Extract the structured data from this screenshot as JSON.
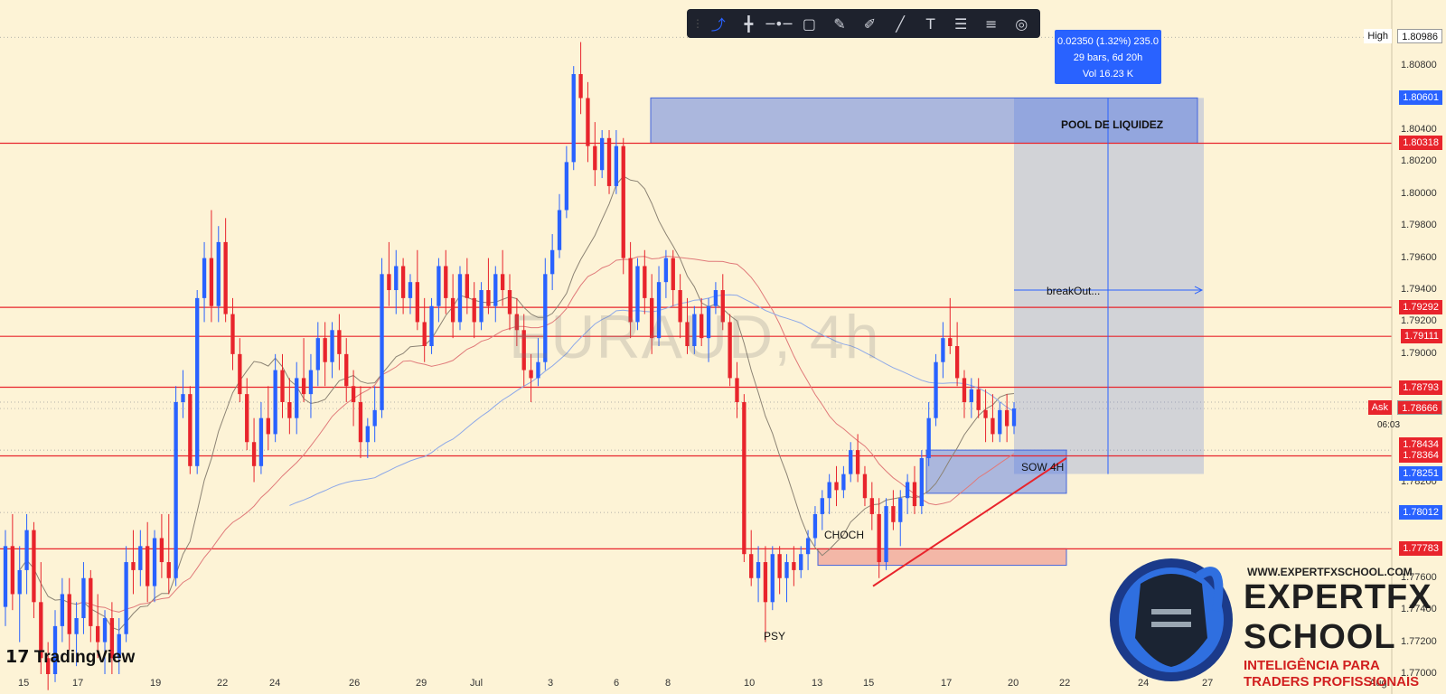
{
  "toolbar": {
    "icons": [
      "cursor-icon",
      "crosshair-icon",
      "horizontal-line-icon",
      "rectangle-icon",
      "brush-icon",
      "magic-icon",
      "trendline-icon",
      "text-icon",
      "fib-icon",
      "levels-icon",
      "settings-icon"
    ],
    "glyphs": [
      "⤴",
      "╋",
      "─•─",
      "▢",
      "✎",
      "✐",
      "╱",
      "T",
      "☰",
      "≡",
      "◎"
    ]
  },
  "measure": {
    "line1": "0.02350 (1.32%) 235.0",
    "line2": "29 bars, 6d 20h",
    "line3": "Vol 16.23 K"
  },
  "watermark": "EURAUD, 4h",
  "tv_logo": "TradingView",
  "brand": {
    "url": "WWW.EXPERTFXSCHOOL.COM",
    "name1": "EXPERTFX",
    "name2": "SCHOOL",
    "tagline1": "INTELIGÊNCIA PARA",
    "tagline2": "TRADERS PROFISSIONAIS"
  },
  "annotations": {
    "pool": "POOL DE LIQUIDEZ",
    "breakout": "breakOut...",
    "sow": "SOW 4H",
    "choch": "CHOCH",
    "psy": "PSY"
  },
  "price_labels": [
    {
      "text": "High",
      "value": "1.80986",
      "bg": "#ffffff",
      "fg": "#111111",
      "tag": true
    },
    {
      "text": "",
      "value": "1.80601",
      "bg": "#2962ff",
      "fg": "#ffffff"
    },
    {
      "text": "",
      "value": "1.80318",
      "bg": "#e8242c",
      "fg": "#ffffff"
    },
    {
      "text": "",
      "value": "1.79292",
      "bg": "#e8242c",
      "fg": "#ffffff"
    },
    {
      "text": "",
      "value": "1.79111",
      "bg": "#e8242c",
      "fg": "#ffffff"
    },
    {
      "text": "",
      "value": "1.78793",
      "bg": "#e8242c",
      "fg": "#ffffff"
    },
    {
      "text": "Ask",
      "value": "1.78666",
      "bg": "#e8242c",
      "fg": "#ffffff",
      "tag": true
    },
    {
      "text": "",
      "value": "1.78434",
      "bg": "#e8242c",
      "fg": "#ffffff"
    },
    {
      "text": "",
      "value": "1.78364",
      "bg": "#e8242c",
      "fg": "#ffffff"
    },
    {
      "text": "",
      "value": "1.78251",
      "bg": "#2962ff",
      "fg": "#ffffff"
    },
    {
      "text": "",
      "value": "1.78012",
      "bg": "#2962ff",
      "fg": "#ffffff"
    },
    {
      "text": "",
      "value": "1.77783",
      "bg": "#e8242c",
      "fg": "#ffffff"
    }
  ],
  "timer": "06:03",
  "chart_data": {
    "type": "candlestick",
    "symbol": "EURAUD",
    "timeframe": "4h",
    "ylim": [
      1.77,
      1.811
    ],
    "y_ticks": [
      1.808,
      1.804,
      1.802,
      1.8,
      1.798,
      1.796,
      1.794,
      1.792,
      1.79,
      1.782,
      1.776,
      1.774,
      1.772,
      1.77
    ],
    "y_tick_labels": [
      "1.80800",
      "1.80400",
      "1.80200",
      "1.80000",
      "1.79800",
      "1.79600",
      "1.79400",
      "1.79200",
      "1.79000",
      "1.78200",
      "1.77600",
      "1.77400",
      "1.77200",
      "1.77000"
    ],
    "x_tick_labels": [
      "15",
      "17",
      "19",
      "22",
      "24",
      "26",
      "29",
      "Jul",
      "3",
      "6",
      "8",
      "10",
      "13",
      "15",
      "17",
      "20",
      "22",
      "24",
      "27",
      "Aug"
    ],
    "horizontal_levels": [
      1.80318,
      1.79292,
      1.79111,
      1.78793,
      1.78364,
      1.77783
    ],
    "zones": {
      "pool_de_liquidez": [
        1.80318,
        1.80601
      ],
      "projection": [
        1.78251,
        1.80601
      ],
      "sow_4h": [
        1.7813,
        1.784
      ],
      "choch": [
        1.7768,
        1.77783
      ]
    },
    "measure": {
      "change": 0.0235,
      "percent": 1.32,
      "pips": 235.0,
      "bars": 29,
      "duration": "6d 20h",
      "volume": "16.23 K"
    },
    "candles": [
      [
        1.7742,
        1.779,
        1.773,
        1.778
      ],
      [
        1.778,
        1.78,
        1.774,
        1.775
      ],
      [
        1.775,
        1.778,
        1.772,
        1.7765
      ],
      [
        1.7765,
        1.78,
        1.775,
        1.779
      ],
      [
        1.779,
        1.7795,
        1.7735,
        1.7745
      ],
      [
        1.7745,
        1.777,
        1.77,
        1.771
      ],
      [
        1.771,
        1.772,
        1.769,
        1.77
      ],
      [
        1.77,
        1.774,
        1.7695,
        1.773
      ],
      [
        1.773,
        1.776,
        1.772,
        1.775
      ],
      [
        1.775,
        1.776,
        1.7715,
        1.7725
      ],
      [
        1.7725,
        1.7745,
        1.7705,
        1.7735
      ],
      [
        1.7735,
        1.777,
        1.7725,
        1.776
      ],
      [
        1.776,
        1.7765,
        1.772,
        1.773
      ],
      [
        1.773,
        1.775,
        1.771,
        1.772
      ],
      [
        1.772,
        1.774,
        1.77,
        1.7735
      ],
      [
        1.7735,
        1.7745,
        1.77,
        1.771
      ],
      [
        1.771,
        1.7735,
        1.77,
        1.7725
      ],
      [
        1.7725,
        1.778,
        1.772,
        1.777
      ],
      [
        1.777,
        1.779,
        1.775,
        1.7765
      ],
      [
        1.7765,
        1.779,
        1.7755,
        1.778
      ],
      [
        1.778,
        1.7795,
        1.7745,
        1.7755
      ],
      [
        1.7755,
        1.779,
        1.7745,
        1.7785
      ],
      [
        1.7785,
        1.78,
        1.776,
        1.777
      ],
      [
        1.777,
        1.78,
        1.775,
        1.776
      ],
      [
        1.776,
        1.788,
        1.7755,
        1.787
      ],
      [
        1.787,
        1.789,
        1.786,
        1.7875
      ],
      [
        1.7875,
        1.788,
        1.7825,
        1.783
      ],
      [
        1.783,
        1.794,
        1.7825,
        1.7935
      ],
      [
        1.7935,
        1.797,
        1.792,
        1.796
      ],
      [
        1.796,
        1.799,
        1.792,
        1.793
      ],
      [
        1.793,
        1.798,
        1.792,
        1.797
      ],
      [
        1.797,
        1.7985,
        1.792,
        1.7925
      ],
      [
        1.7925,
        1.7935,
        1.789,
        1.79
      ],
      [
        1.79,
        1.791,
        1.787,
        1.7875
      ],
      [
        1.7875,
        1.7885,
        1.784,
        1.7845
      ],
      [
        1.7845,
        1.786,
        1.782,
        1.783
      ],
      [
        1.783,
        1.787,
        1.7825,
        1.786
      ],
      [
        1.786,
        1.788,
        1.784,
        1.785
      ],
      [
        1.785,
        1.79,
        1.7845,
        1.789
      ],
      [
        1.789,
        1.79,
        1.786,
        1.787
      ],
      [
        1.787,
        1.7885,
        1.785,
        1.786
      ],
      [
        1.786,
        1.7895,
        1.785,
        1.7885
      ],
      [
        1.7885,
        1.791,
        1.787,
        1.7875
      ],
      [
        1.7875,
        1.79,
        1.786,
        1.789
      ],
      [
        1.789,
        1.792,
        1.788,
        1.791
      ],
      [
        1.791,
        1.792,
        1.788,
        1.7895
      ],
      [
        1.7895,
        1.792,
        1.7885,
        1.7915
      ],
      [
        1.7915,
        1.7925,
        1.789,
        1.79
      ],
      [
        1.79,
        1.791,
        1.787,
        1.788
      ],
      [
        1.788,
        1.789,
        1.7855,
        1.787
      ],
      [
        1.787,
        1.788,
        1.7835,
        1.7845
      ],
      [
        1.7845,
        1.786,
        1.7835,
        1.7855
      ],
      [
        1.7855,
        1.788,
        1.7845,
        1.7865
      ],
      [
        1.7865,
        1.796,
        1.786,
        1.795
      ],
      [
        1.795,
        1.797,
        1.793,
        1.794
      ],
      [
        1.794,
        1.7965,
        1.7925,
        1.7955
      ],
      [
        1.7955,
        1.796,
        1.7925,
        1.7935
      ],
      [
        1.7935,
        1.795,
        1.7925,
        1.7945
      ],
      [
        1.7945,
        1.7965,
        1.7915,
        1.792
      ],
      [
        1.792,
        1.7935,
        1.7895,
        1.7905
      ],
      [
        1.7905,
        1.7935,
        1.79,
        1.793
      ],
      [
        1.793,
        1.796,
        1.792,
        1.7955
      ],
      [
        1.7955,
        1.7965,
        1.7925,
        1.7935
      ],
      [
        1.7935,
        1.795,
        1.791,
        1.792
      ],
      [
        1.792,
        1.7955,
        1.7915,
        1.795
      ],
      [
        1.795,
        1.796,
        1.7925,
        1.7935
      ],
      [
        1.7935,
        1.7945,
        1.791,
        1.792
      ],
      [
        1.792,
        1.7945,
        1.7915,
        1.794
      ],
      [
        1.794,
        1.796,
        1.7925,
        1.793
      ],
      [
        1.793,
        1.7955,
        1.792,
        1.795
      ],
      [
        1.795,
        1.7965,
        1.793,
        1.794
      ],
      [
        1.794,
        1.795,
        1.7915,
        1.7925
      ],
      [
        1.7925,
        1.7935,
        1.7905,
        1.7915
      ],
      [
        1.7915,
        1.7925,
        1.788,
        1.789
      ],
      [
        1.789,
        1.79,
        1.787,
        1.7885
      ],
      [
        1.7885,
        1.791,
        1.788,
        1.7895
      ],
      [
        1.7895,
        1.796,
        1.789,
        1.795
      ],
      [
        1.795,
        1.7975,
        1.794,
        1.7965
      ],
      [
        1.7965,
        1.8,
        1.796,
        1.799
      ],
      [
        1.799,
        1.803,
        1.7985,
        1.802
      ],
      [
        1.802,
        1.808,
        1.8015,
        1.8075
      ],
      [
        1.8075,
        1.8095,
        1.805,
        1.806
      ],
      [
        1.806,
        1.807,
        1.802,
        1.803
      ],
      [
        1.803,
        1.8045,
        1.8005,
        1.8015
      ],
      [
        1.8015,
        1.804,
        1.801,
        1.8035
      ],
      [
        1.8035,
        1.804,
        1.8,
        1.8005
      ],
      [
        1.8005,
        1.804,
        1.8,
        1.803
      ],
      [
        1.803,
        1.8035,
        1.795,
        1.796
      ],
      [
        1.796,
        1.797,
        1.791,
        1.792
      ],
      [
        1.792,
        1.796,
        1.7915,
        1.7955
      ],
      [
        1.7955,
        1.7965,
        1.7925,
        1.7935
      ],
      [
        1.7935,
        1.795,
        1.79,
        1.791
      ],
      [
        1.791,
        1.7955,
        1.7905,
        1.7945
      ],
      [
        1.7945,
        1.7965,
        1.7935,
        1.796
      ],
      [
        1.796,
        1.7965,
        1.793,
        1.794
      ],
      [
        1.794,
        1.795,
        1.791,
        1.792
      ],
      [
        1.792,
        1.7935,
        1.79,
        1.7905
      ],
      [
        1.7905,
        1.793,
        1.79,
        1.7925
      ],
      [
        1.7925,
        1.7935,
        1.7905,
        1.791
      ],
      [
        1.791,
        1.7935,
        1.7895,
        1.793
      ],
      [
        1.793,
        1.7945,
        1.7925,
        1.794
      ],
      [
        1.794,
        1.795,
        1.7915,
        1.792
      ],
      [
        1.792,
        1.7925,
        1.788,
        1.7885
      ],
      [
        1.7885,
        1.7895,
        1.786,
        1.787
      ],
      [
        1.787,
        1.7875,
        1.777,
        1.7775
      ],
      [
        1.7775,
        1.779,
        1.7755,
        1.776
      ],
      [
        1.776,
        1.778,
        1.7745,
        1.777
      ],
      [
        1.777,
        1.778,
        1.772,
        1.7745
      ],
      [
        1.7745,
        1.778,
        1.774,
        1.7775
      ],
      [
        1.7775,
        1.778,
        1.775,
        1.776
      ],
      [
        1.776,
        1.7775,
        1.7745,
        1.777
      ],
      [
        1.777,
        1.778,
        1.7755,
        1.7765
      ],
      [
        1.7765,
        1.778,
        1.776,
        1.7775
      ],
      [
        1.7775,
        1.779,
        1.7765,
        1.7785
      ],
      [
        1.7785,
        1.7805,
        1.778,
        1.78
      ],
      [
        1.78,
        1.7815,
        1.779,
        1.781
      ],
      [
        1.781,
        1.7825,
        1.78,
        1.782
      ],
      [
        1.782,
        1.783,
        1.7805,
        1.7815
      ],
      [
        1.7815,
        1.783,
        1.781,
        1.7825
      ],
      [
        1.7825,
        1.7845,
        1.782,
        1.784
      ],
      [
        1.784,
        1.785,
        1.782,
        1.7825
      ],
      [
        1.7825,
        1.783,
        1.7805,
        1.781
      ],
      [
        1.781,
        1.782,
        1.779,
        1.78
      ],
      [
        1.78,
        1.781,
        1.776,
        1.777
      ],
      [
        1.777,
        1.781,
        1.7765,
        1.7805
      ],
      [
        1.7805,
        1.7815,
        1.779,
        1.7795
      ],
      [
        1.7795,
        1.7815,
        1.778,
        1.781
      ],
      [
        1.781,
        1.7825,
        1.78,
        1.782
      ],
      [
        1.782,
        1.783,
        1.78,
        1.7805
      ],
      [
        1.7805,
        1.784,
        1.78,
        1.7835
      ],
      [
        1.7835,
        1.787,
        1.783,
        1.786
      ],
      [
        1.786,
        1.79,
        1.7855,
        1.7895
      ],
      [
        1.7895,
        1.792,
        1.7885,
        1.791
      ],
      [
        1.791,
        1.7935,
        1.79,
        1.7905
      ],
      [
        1.7905,
        1.792,
        1.788,
        1.7885
      ],
      [
        1.7885,
        1.789,
        1.786,
        1.787
      ],
      [
        1.787,
        1.7885,
        1.786,
        1.7878
      ],
      [
        1.7878,
        1.7885,
        1.786,
        1.7865
      ],
      [
        1.7865,
        1.7878,
        1.7845,
        1.786
      ],
      [
        1.786,
        1.7875,
        1.7845,
        1.785
      ],
      [
        1.785,
        1.787,
        1.7845,
        1.7865
      ],
      [
        1.7865,
        1.7875,
        1.7845,
        1.7855
      ],
      [
        1.7855,
        1.787,
        1.785,
        1.7866
      ]
    ]
  }
}
